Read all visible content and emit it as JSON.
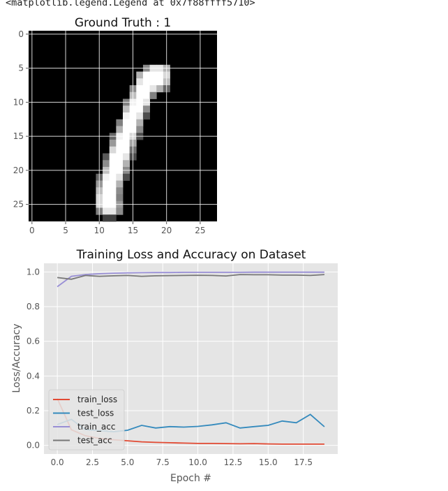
{
  "header": {
    "output_text": "<matplotlib.legend.Legend at 0x7f88ffff5710>"
  },
  "chart_data": [
    {
      "type": "heatmap",
      "title": "Ground Truth : 1",
      "xlabel": "",
      "ylabel": "",
      "xlim": [
        -0.5,
        27.5
      ],
      "ylim": [
        27.5,
        -0.5
      ],
      "xticks": [
        "0",
        "5",
        "10",
        "15",
        "20",
        "25"
      ],
      "yticks": [
        "0",
        "5",
        "10",
        "15",
        "20",
        "25"
      ],
      "colormap": "gray",
      "grid": true,
      "grid_color": "#ffffff",
      "background": "#000000",
      "pixels": [
        [
          5,
          17,
          0.55
        ],
        [
          5,
          18,
          0.9
        ],
        [
          5,
          19,
          0.9
        ],
        [
          5,
          20,
          0.7
        ],
        [
          6,
          16,
          0.7
        ],
        [
          6,
          17,
          1.0
        ],
        [
          6,
          18,
          1.0
        ],
        [
          6,
          19,
          1.0
        ],
        [
          6,
          20,
          0.85
        ],
        [
          7,
          16,
          0.9
        ],
        [
          7,
          17,
          1.0
        ],
        [
          7,
          18,
          1.0
        ],
        [
          7,
          19,
          1.0
        ],
        [
          7,
          20,
          0.75
        ],
        [
          8,
          15,
          0.55
        ],
        [
          8,
          16,
          1.0
        ],
        [
          8,
          17,
          1.0
        ],
        [
          8,
          18,
          0.9
        ],
        [
          8,
          19,
          0.7
        ],
        [
          8,
          20,
          0.4
        ],
        [
          9,
          15,
          0.75
        ],
        [
          9,
          16,
          1.0
        ],
        [
          9,
          17,
          1.0
        ],
        [
          9,
          18,
          0.5
        ],
        [
          10,
          14,
          0.5
        ],
        [
          10,
          15,
          0.95
        ],
        [
          10,
          16,
          1.0
        ],
        [
          10,
          17,
          0.9
        ],
        [
          11,
          14,
          0.75
        ],
        [
          11,
          15,
          1.0
        ],
        [
          11,
          16,
          1.0
        ],
        [
          11,
          17,
          0.55
        ],
        [
          12,
          14,
          0.95
        ],
        [
          12,
          15,
          1.0
        ],
        [
          12,
          16,
          0.9
        ],
        [
          12,
          17,
          0.3
        ],
        [
          13,
          13,
          0.5
        ],
        [
          13,
          14,
          1.0
        ],
        [
          13,
          15,
          1.0
        ],
        [
          13,
          16,
          0.7
        ],
        [
          14,
          13,
          0.7
        ],
        [
          14,
          14,
          1.0
        ],
        [
          14,
          15,
          1.0
        ],
        [
          14,
          16,
          0.55
        ],
        [
          15,
          12,
          0.4
        ],
        [
          15,
          13,
          0.95
        ],
        [
          15,
          14,
          1.0
        ],
        [
          15,
          15,
          0.85
        ],
        [
          15,
          16,
          0.3
        ],
        [
          16,
          12,
          0.6
        ],
        [
          16,
          13,
          1.0
        ],
        [
          16,
          14,
          1.0
        ],
        [
          16,
          15,
          0.65
        ],
        [
          17,
          12,
          0.85
        ],
        [
          17,
          13,
          1.0
        ],
        [
          17,
          14,
          1.0
        ],
        [
          17,
          15,
          0.45
        ],
        [
          18,
          11,
          0.35
        ],
        [
          18,
          12,
          1.0
        ],
        [
          18,
          13,
          1.0
        ],
        [
          18,
          14,
          0.9
        ],
        [
          18,
          15,
          0.3
        ],
        [
          19,
          11,
          0.55
        ],
        [
          19,
          12,
          1.0
        ],
        [
          19,
          13,
          1.0
        ],
        [
          19,
          14,
          0.7
        ],
        [
          20,
          11,
          0.75
        ],
        [
          20,
          12,
          1.0
        ],
        [
          20,
          13,
          1.0
        ],
        [
          20,
          14,
          0.55
        ],
        [
          21,
          10,
          0.4
        ],
        [
          21,
          11,
          0.95
        ],
        [
          21,
          12,
          1.0
        ],
        [
          21,
          13,
          0.9
        ],
        [
          21,
          14,
          0.3
        ],
        [
          22,
          10,
          0.6
        ],
        [
          22,
          11,
          1.0
        ],
        [
          22,
          12,
          1.0
        ],
        [
          22,
          13,
          0.7
        ],
        [
          23,
          10,
          0.75
        ],
        [
          23,
          11,
          1.0
        ],
        [
          23,
          12,
          1.0
        ],
        [
          23,
          13,
          0.55
        ],
        [
          24,
          10,
          0.85
        ],
        [
          24,
          11,
          1.0
        ],
        [
          24,
          12,
          1.0
        ],
        [
          24,
          13,
          0.5
        ],
        [
          25,
          10,
          0.85
        ],
        [
          25,
          11,
          1.0
        ],
        [
          25,
          12,
          1.0
        ],
        [
          25,
          13,
          0.6
        ],
        [
          26,
          10,
          0.5
        ],
        [
          26,
          11,
          0.9
        ],
        [
          26,
          12,
          0.9
        ],
        [
          26,
          13,
          0.55
        ],
        [
          27,
          11,
          0.25
        ],
        [
          27,
          12,
          0.25
        ]
      ]
    },
    {
      "type": "line",
      "title": "Training Loss and Accuracy on Dataset",
      "xlabel": "Epoch #",
      "ylabel": "Loss/Accuracy",
      "xlim": [
        -0.95,
        19.95
      ],
      "ylim": [
        -0.05,
        1.05
      ],
      "xticks": [
        "0.0",
        "2.5",
        "5.0",
        "7.5",
        "10.0",
        "12.5",
        "15.0",
        "17.5"
      ],
      "yticks": [
        "0.0",
        "0.2",
        "0.4",
        "0.6",
        "0.8",
        "1.0"
      ],
      "grid": true,
      "legend_position": "lower-left",
      "x": [
        0,
        1,
        2,
        3,
        4,
        5,
        6,
        7,
        8,
        9,
        10,
        11,
        12,
        13,
        14,
        15,
        16,
        17,
        18,
        19
      ],
      "series": [
        {
          "name": "train_loss",
          "color": "#E24A33",
          "values": [
            0.27,
            0.09,
            0.055,
            0.04,
            0.032,
            0.026,
            0.02,
            0.017,
            0.015,
            0.013,
            0.011,
            0.011,
            0.01,
            0.009,
            0.01,
            0.008,
            0.007,
            0.007,
            0.007,
            0.007
          ]
        },
        {
          "name": "test_loss",
          "color": "#348ABD",
          "values": [
            0.12,
            0.15,
            0.09,
            0.085,
            0.078,
            0.087,
            0.115,
            0.1,
            0.108,
            0.105,
            0.109,
            0.118,
            0.13,
            0.1,
            0.108,
            0.115,
            0.14,
            0.13,
            0.178,
            0.107
          ]
        },
        {
          "name": "train_acc",
          "color": "#988ED5",
          "values": [
            0.915,
            0.975,
            0.985,
            0.99,
            0.993,
            0.995,
            0.996,
            0.997,
            0.997,
            0.998,
            0.998,
            0.998,
            0.998,
            0.998,
            0.999,
            0.999,
            0.999,
            0.999,
            0.999,
            0.999
          ]
        },
        {
          "name": "test_acc",
          "color": "#777777",
          "values": [
            0.968,
            0.958,
            0.98,
            0.975,
            0.978,
            0.98,
            0.975,
            0.978,
            0.979,
            0.98,
            0.981,
            0.98,
            0.977,
            0.985,
            0.984,
            0.984,
            0.982,
            0.982,
            0.98,
            0.985
          ]
        }
      ]
    }
  ]
}
